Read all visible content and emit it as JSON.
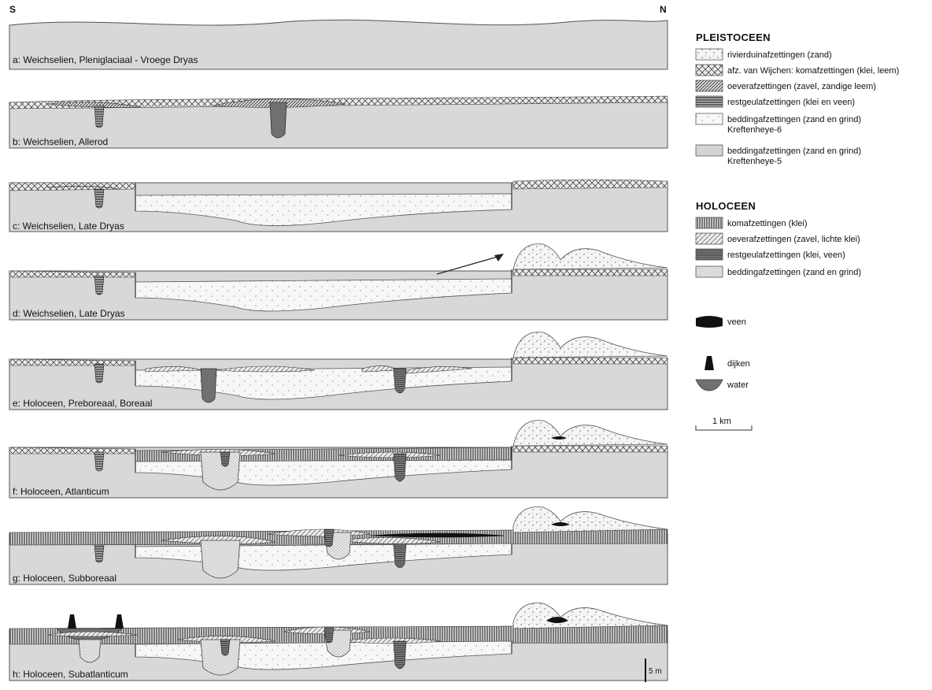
{
  "compass": {
    "south": "S",
    "north": "N"
  },
  "panels": [
    {
      "id": "a",
      "label": "a: Weichselien, Pleniglaciaal - Vroege Dryas"
    },
    {
      "id": "b",
      "label": "b: Weichselien, Allerod"
    },
    {
      "id": "c",
      "label": "c: Weichselien, Late Dryas"
    },
    {
      "id": "d",
      "label": "d: Weichselien, Late Dryas"
    },
    {
      "id": "e",
      "label": "e: Holoceen, Preboreaal, Boreaal"
    },
    {
      "id": "f",
      "label": "f: Holoceen, Atlanticum"
    },
    {
      "id": "g",
      "label": "g: Holoceen, Subboreaal"
    },
    {
      "id": "h",
      "label": "h: Holoceen, Subatlanticum"
    }
  ],
  "legend": {
    "pleistoceen": {
      "title": "PLEISTOCEEN",
      "items": [
        {
          "pattern": "dune-sand",
          "text": "rivierduinafzettingen (zand)"
        },
        {
          "pattern": "crosshatch",
          "text": "afz. van Wijchen: komafzettingen (klei, leem)"
        },
        {
          "pattern": "diag-dense",
          "text": "oeverafzettingen (zavel, zandige leem)"
        },
        {
          "pattern": "horiz-dark",
          "text": "restgeulafzettingen (klei en veen)"
        },
        {
          "pattern": "sparse-dots",
          "text": "beddingafzettingen (zand en grind)",
          "text2": "Kreftenheye-6"
        },
        {
          "pattern": "light-gray",
          "text": "beddingafzettingen (zand en grind)",
          "text2": "Kreftenheye-5"
        }
      ]
    },
    "holoceen": {
      "title": "HOLOCEEN",
      "items": [
        {
          "pattern": "vertical-lines",
          "text": "komafzettingen (klei)"
        },
        {
          "pattern": "diag-light",
          "text": "oeverafzettingen (zavel, lichte klei)"
        },
        {
          "pattern": "horiz-fine",
          "text": "restgeulafzettingen (klei, veen)"
        },
        {
          "pattern": "fine-dots",
          "text": "beddingafzettingen (zand en grind)"
        }
      ]
    },
    "symbols": [
      {
        "symbol": "veen",
        "text": "veen"
      },
      {
        "symbol": "dijk",
        "text": "dijken"
      },
      {
        "symbol": "water",
        "text": "water"
      }
    ],
    "scale_horizontal": "1 km",
    "scale_vertical": "5 m"
  },
  "colors": {
    "water": "#707070",
    "veen": "#111111",
    "kreftenheye5": "#d4d4d4",
    "background": "#ffffff"
  }
}
